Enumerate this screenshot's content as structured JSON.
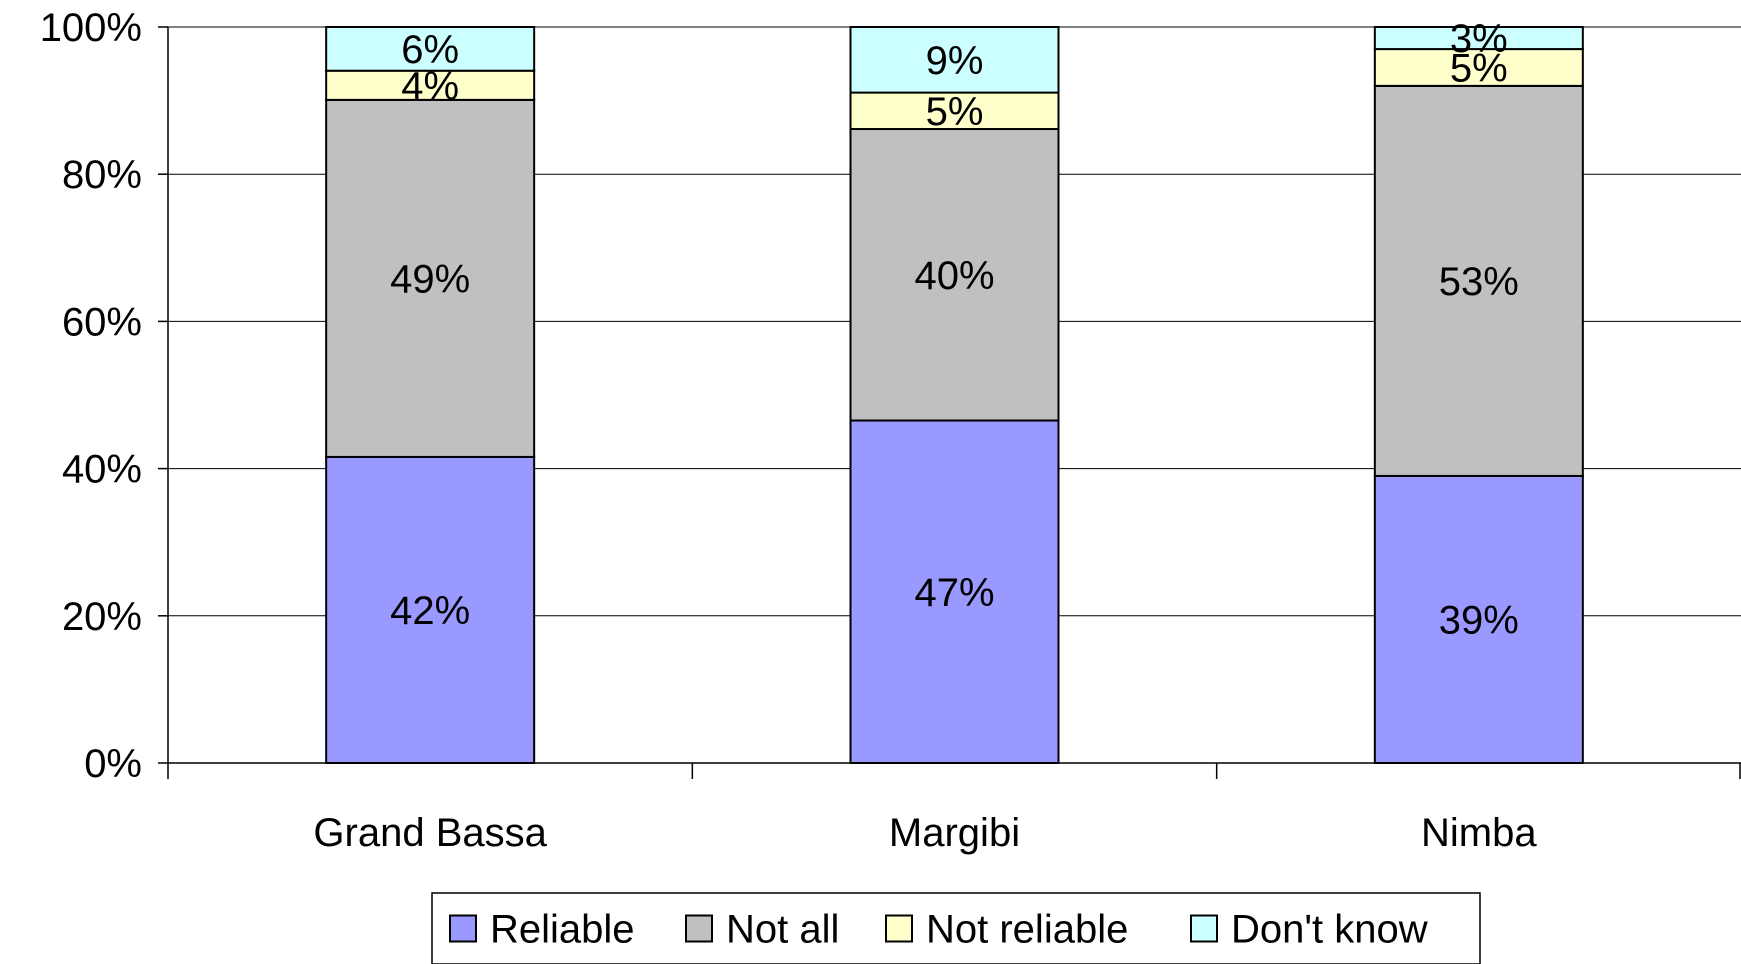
{
  "chart_data": {
    "type": "bar",
    "stacked": true,
    "percent_stacked": true,
    "categories": [
      "Grand Bassa",
      "Margibi",
      "Nimba"
    ],
    "series": [
      {
        "name": "Reliable",
        "values": [
          42,
          47,
          39
        ],
        "labels": [
          "42%",
          "47%",
          "39%"
        ],
        "color": "#9999ff"
      },
      {
        "name": "Not all",
        "values": [
          49,
          40,
          53
        ],
        "labels": [
          "49%",
          "40%",
          "53%"
        ],
        "color": "#c0c0c0"
      },
      {
        "name": "Not reliable",
        "values": [
          4,
          5,
          5
        ],
        "labels": [
          "4%",
          "5%",
          "5%"
        ],
        "color": "#ffffcc"
      },
      {
        "name": "Don't know",
        "values": [
          6,
          9,
          3
        ],
        "labels": [
          "6%",
          "9%",
          "3%"
        ],
        "color": "#ccffff"
      }
    ],
    "yticks": [
      "0%",
      "20%",
      "40%",
      "60%",
      "80%",
      "100%"
    ],
    "ylim": [
      0,
      100
    ],
    "grid": true,
    "legend": "bottom",
    "title": "",
    "xlabel": "",
    "ylabel": ""
  }
}
